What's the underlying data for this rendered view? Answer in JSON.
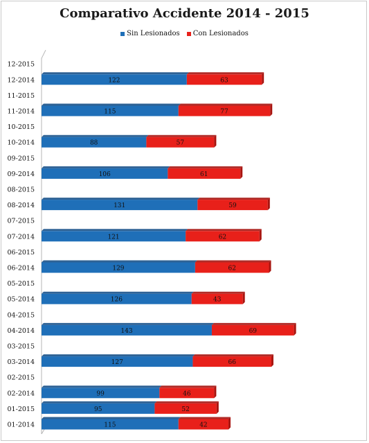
{
  "chart_data": {
    "type": "bar",
    "orientation": "horizontal",
    "stacked": true,
    "title": "Comparativo Accidente 2014 - 2015",
    "categories": [
      "01-2014",
      "01-2015",
      "02-2014",
      "02-2015",
      "03-2014",
      "03-2015",
      "04-2014",
      "04-2015",
      "05-2014",
      "05-2015",
      "06-2014",
      "06-2015",
      "07-2014",
      "07-2015",
      "08-2014",
      "08-2015",
      "09-2014",
      "09-2015",
      "10-2014",
      "10-2015",
      "11-2014",
      "11-2015",
      "12-2014",
      "12-2015"
    ],
    "series": [
      {
        "name": "Sin Lesionados",
        "color": "#1f6fb8",
        "values": [
          115,
          95,
          99,
          null,
          127,
          null,
          143,
          null,
          126,
          null,
          129,
          null,
          121,
          null,
          131,
          null,
          106,
          null,
          88,
          null,
          115,
          null,
          122,
          null
        ]
      },
      {
        "name": "Con Lesionados",
        "color": "#e8201a",
        "values": [
          42,
          52,
          46,
          null,
          66,
          null,
          69,
          null,
          43,
          null,
          62,
          null,
          62,
          null,
          59,
          null,
          61,
          null,
          57,
          null,
          77,
          null,
          63,
          null
        ]
      }
    ],
    "legend_position": "top",
    "grid": false,
    "xlim": [
      0,
      220
    ]
  }
}
